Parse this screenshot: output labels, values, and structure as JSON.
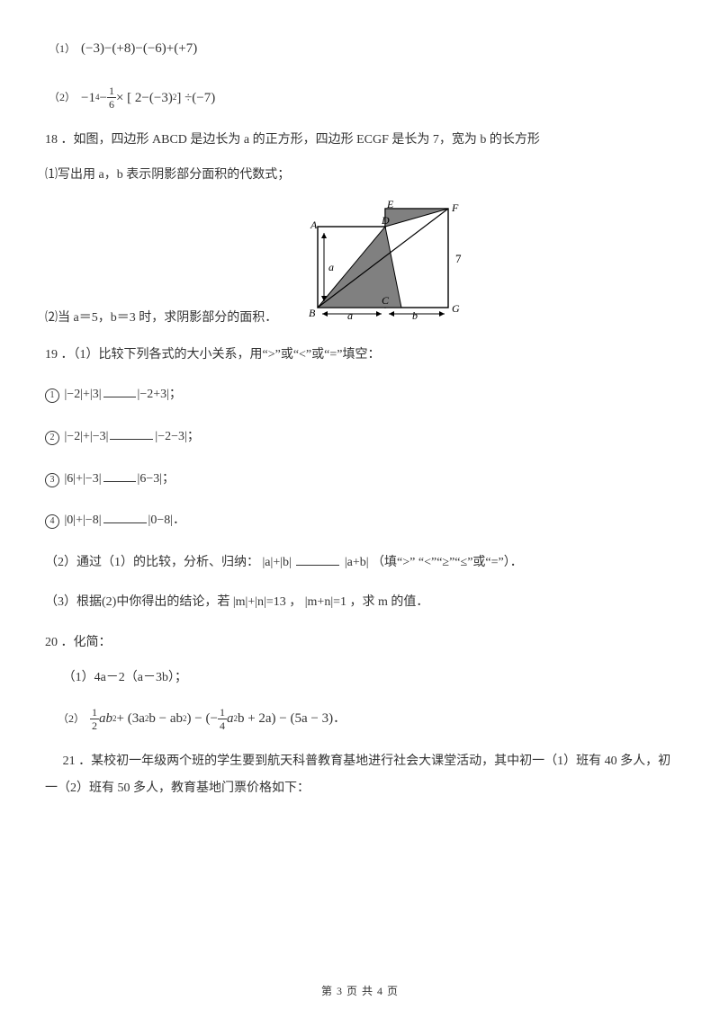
{
  "q17": {
    "sub1_label": "（1）",
    "sub1_expr": "(−3)−(+8)−(−6)+(+7)",
    "sub2_label": "（2）",
    "sub2_prefix": "−1",
    "sub2_exp": "4",
    "sub2_minus": " − ",
    "sub2_frac_num": "1",
    "sub2_frac_den": "6",
    "sub2_mid": "× [ 2−(−3)",
    "sub2_exp2": "2",
    "sub2_tail": " ] ÷(−7)"
  },
  "q18": {
    "heading": "18 ．如图，四边形 ABCD 是边长为 a 的正方形，四边形 ECGF 是长为 7，宽为 b 的长方形",
    "p1": "⑴写出用 a，b 表示阴影部分面积的代数式；",
    "p2_prefix": "⑵当 a＝5，b＝3 时，求阴影部分的面积．",
    "labels": {
      "A": "A",
      "B": "B",
      "C": "C",
      "D": "D",
      "E": "E",
      "F": "F",
      "G": "G",
      "a": "a",
      "b": "b",
      "seven": "7"
    }
  },
  "q19": {
    "heading": "19 ．（1）比较下列各式的大小关系，用“>”或“<”或“=”填空：",
    "items": [
      {
        "n": "1",
        "left": "|−2|+|3|",
        "right": "|−2+3|",
        "tail": "；"
      },
      {
        "n": "2",
        "left": "|−2|+|−3|",
        "right": "|−2−3|",
        "tail": "；"
      },
      {
        "n": "3",
        "left": "|6|+|−3|",
        "right": "|6−3|",
        "tail": "；"
      },
      {
        "n": "4",
        "left": "|0|+|−8|",
        "right": "|0−8|",
        "tail": "．"
      }
    ],
    "p2_a": "（2）通过（1）的比较，分析、归纳：",
    "p2_left": "|a|+|b|",
    "p2_right": "|a+b|",
    "p2_b": "（填“>”  “<”“≥”“≤”或“=”）．",
    "p3_a": "（3）根据(2)中你得出的结论，若",
    "p3_mid1": "|m|+|n|=13",
    "p3_comma": "，",
    "p3_mid2": "|m+n|=1",
    "p3_b": "，求 m 的值．"
  },
  "q20": {
    "heading": "20 ．化简：",
    "p1": "（1）4a－2（a－3b）；",
    "p2_label": "（2）",
    "p2_f1_num": "1",
    "p2_f1_den": "2",
    "p2_a": "ab",
    "p2_sup2": "2",
    "p2_b": " + (3a",
    "p2_c": "b − ab",
    "p2_d": ") − (−",
    "p2_f2_num": "1",
    "p2_f2_den": "4",
    "p2_e": "a",
    "p2_f": "b + 2a) − (5a − 3)",
    "p2_tail": "．"
  },
  "q21": {
    "text": "21 ．某校初一年级两个班的学生要到航天科普教育基地进行社会大课堂活动，其中初一（1）班有 40 多人，初一（2）班有 50 多人，教育基地门票价格如下："
  },
  "footer": "第 3 页 共 4 页",
  "colors": {
    "text": "#333333",
    "bg": "#ffffff",
    "shade": "#808080",
    "line": "#000000"
  }
}
